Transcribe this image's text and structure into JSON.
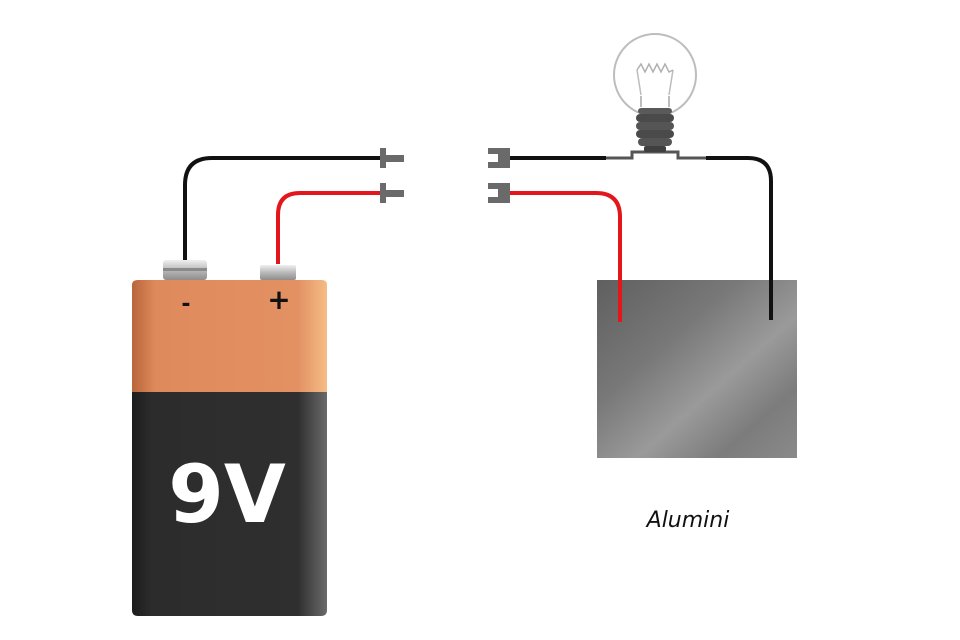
{
  "battery": {
    "voltage_label": "9V",
    "negative_sign": "-",
    "positive_sign": "+",
    "top_color": "#e08a5a",
    "body_color": "#2e2e2e"
  },
  "plate": {
    "caption": "Alumini",
    "color": "#7a7a7a"
  },
  "wires": {
    "negative_color": "#111111",
    "positive_color": "#e3161b"
  },
  "bulb": {
    "icon": "light-bulb-icon"
  }
}
